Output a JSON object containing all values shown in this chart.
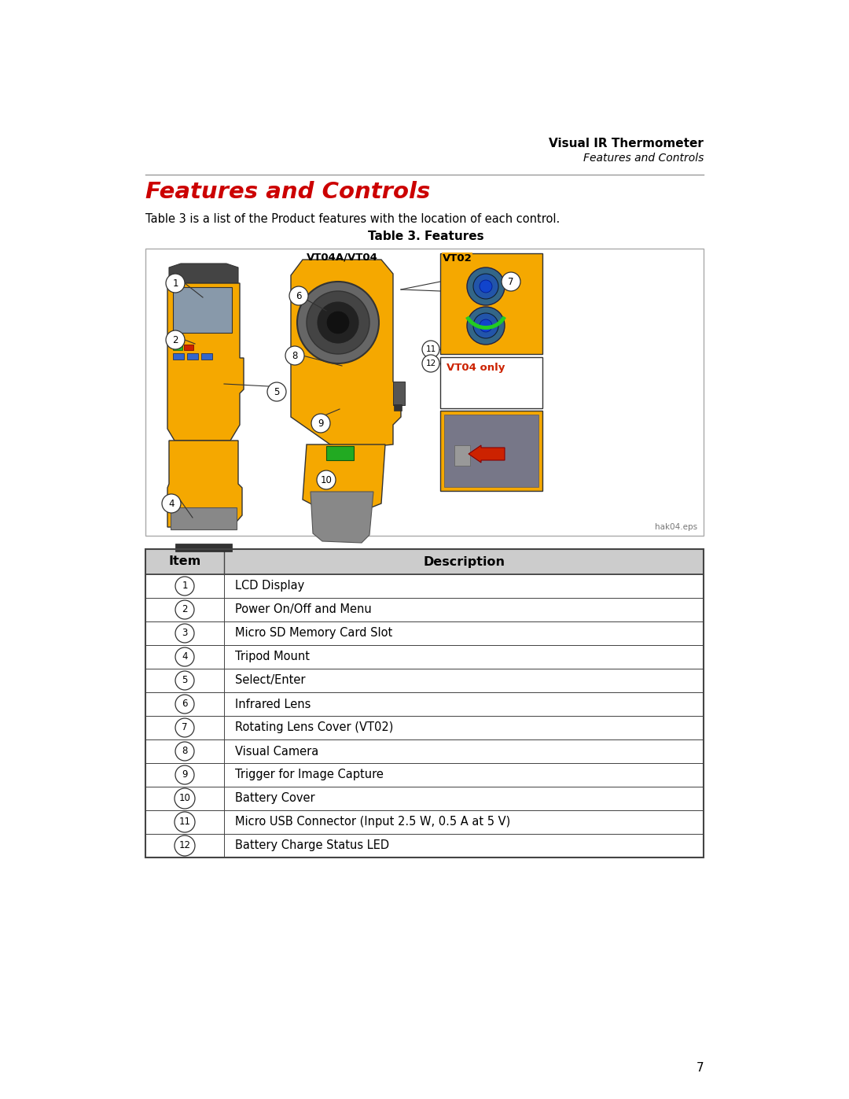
{
  "page_number": "7",
  "header_title": "Visual IR Thermometer",
  "header_subtitle": "Features and Controls",
  "section_title": "Features and Controls",
  "intro_text": "Table 3 is a list of the Product features with the location of each control.",
  "table_caption": "Table 3. Features",
  "image_note": "hak04.eps",
  "table_headers": [
    "Item",
    "Description"
  ],
  "table_rows": [
    [
      "1",
      "LCD Display"
    ],
    [
      "2",
      "Power On/Off and Menu"
    ],
    [
      "3",
      "Micro SD Memory Card Slot"
    ],
    [
      "4",
      "Tripod Mount"
    ],
    [
      "5",
      "Select/Enter"
    ],
    [
      "6",
      "Infrared Lens"
    ],
    [
      "7",
      "Rotating Lens Cover (VT02)"
    ],
    [
      "8",
      "Visual Camera"
    ],
    [
      "9",
      "Trigger for Image Capture"
    ],
    [
      "10",
      "Battery Cover"
    ],
    [
      "11",
      "Micro USB Connector (Input 2.5 W, 0.5 A at 5 V)"
    ],
    [
      "12",
      "Battery Charge Status LED"
    ]
  ],
  "bg_color": "#ffffff",
  "header_line_color": "#999999",
  "table_border_color": "#444444",
  "section_title_color": "#cc0000",
  "header_title_color": "#000000",
  "text_color": "#000000",
  "page_num_color": "#000000",
  "yellow": "#F5A800",
  "dark_gray": "#555555",
  "mid_gray": "#888888",
  "light_gray": "#aaaaaa",
  "blue_lens": "#3377aa",
  "green_color": "#22aa22",
  "red_color": "#cc2200"
}
